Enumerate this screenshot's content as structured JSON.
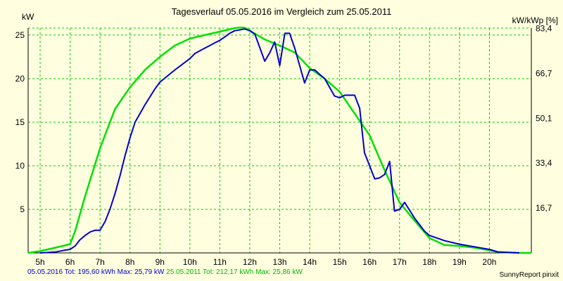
{
  "title": "Tagesverlauf 05.05.2016 im Vergleich zum 25.05.2011",
  "left_unit": "kW",
  "right_unit": "kW/kWp [%]",
  "legend": {
    "series_a": "05.05.2016 Tot: 195,60 kWh Max: 25,79 kW",
    "series_b": "25.05.2011 Tot: 212,17 kWh Max: 25,86 kW"
  },
  "credit": "SunnyReport pinxit",
  "colors": {
    "series_a": "#0000cc",
    "series_b": "#00e000",
    "grid": "#00cc00",
    "background": "#ffffe0"
  },
  "chart_data": {
    "type": "line",
    "xlim": [
      4.6,
      21.4
    ],
    "ylim": [
      0,
      25.8
    ],
    "x_ticks": [
      5,
      6,
      7,
      8,
      9,
      10,
      11,
      12,
      13,
      14,
      15,
      16,
      17,
      18,
      19,
      20
    ],
    "x_tick_labels": [
      "5h",
      "6h",
      "7h",
      "8h",
      "9h",
      "10h",
      "11h",
      "12h",
      "13h",
      "14h",
      "15h",
      "16h",
      "17h",
      "18h",
      "19h",
      "20h"
    ],
    "y_ticks": [
      5,
      10,
      15,
      20,
      25
    ],
    "y_tick_labels": [
      "5",
      "10",
      "15",
      "20",
      "25"
    ],
    "y2_ticks": [
      5.15,
      10.3,
      15.45,
      20.6,
      25.75
    ],
    "y2_tick_labels": [
      "16,7",
      "33,4",
      "50,1",
      "66,7",
      "83,4"
    ],
    "grid": true,
    "series": [
      {
        "name": "05.05.2016",
        "x": [
          5.0,
          5.5,
          5.8,
          6.0,
          6.17,
          6.33,
          6.5,
          6.67,
          6.83,
          7.0,
          7.17,
          7.33,
          7.5,
          7.67,
          7.83,
          8.0,
          8.17,
          8.5,
          8.83,
          9.0,
          9.5,
          10.0,
          10.17,
          10.5,
          10.83,
          11.0,
          11.17,
          11.33,
          11.5,
          11.67,
          11.83,
          12.0,
          12.17,
          12.5,
          12.67,
          12.83,
          13.0,
          13.17,
          13.33,
          13.5,
          13.83,
          14.0,
          14.17,
          14.33,
          14.5,
          14.83,
          15.0,
          15.17,
          15.5,
          15.67,
          15.83,
          16.0,
          16.17,
          16.33,
          16.5,
          16.67,
          16.83,
          17.0,
          17.17,
          17.5,
          17.83,
          18.0,
          18.5,
          19.0,
          19.5,
          20.0,
          20.3,
          21.0
        ],
        "y": [
          0.0,
          0.1,
          0.3,
          0.4,
          0.8,
          1.5,
          2.0,
          2.4,
          2.6,
          2.6,
          3.6,
          5.0,
          6.8,
          8.9,
          11.1,
          13.2,
          15.0,
          17.0,
          18.8,
          19.6,
          21.0,
          22.3,
          22.9,
          23.5,
          24.1,
          24.4,
          24.8,
          25.2,
          25.5,
          25.6,
          25.7,
          25.5,
          25.1,
          22.0,
          23.0,
          24.2,
          21.5,
          25.2,
          25.2,
          23.5,
          19.5,
          21.0,
          21.0,
          20.5,
          20.0,
          18.0,
          17.8,
          18.1,
          18.1,
          16.6,
          11.5,
          10.0,
          8.5,
          8.6,
          9.0,
          10.5,
          4.8,
          5.0,
          5.8,
          4.0,
          2.5,
          2.0,
          1.4,
          1.0,
          0.7,
          0.4,
          0.1,
          0.0
        ]
      },
      {
        "name": "25.05.2011",
        "x": [
          4.6,
          5.0,
          5.5,
          6.0,
          6.17,
          6.5,
          7.0,
          7.5,
          8.0,
          8.5,
          9.0,
          9.5,
          10.0,
          10.5,
          11.0,
          11.5,
          11.67,
          11.83,
          12.0,
          12.5,
          13.0,
          13.5,
          14.0,
          14.5,
          15.0,
          15.5,
          16.0,
          16.5,
          17.0,
          17.5,
          18.0,
          18.5,
          19.0,
          19.5,
          20.0,
          20.3,
          21.0,
          21.4
        ],
        "y": [
          0.0,
          0.2,
          0.6,
          1.0,
          2.5,
          6.5,
          12.0,
          16.5,
          19.0,
          21.0,
          22.5,
          23.8,
          24.6,
          25.0,
          25.4,
          25.8,
          25.86,
          25.85,
          25.5,
          24.5,
          23.8,
          23.0,
          21.2,
          20.0,
          18.5,
          16.0,
          13.5,
          9.5,
          5.8,
          3.7,
          1.7,
          0.9,
          0.8,
          0.6,
          0.3,
          0.1,
          0.0,
          0.0
        ]
      }
    ]
  }
}
